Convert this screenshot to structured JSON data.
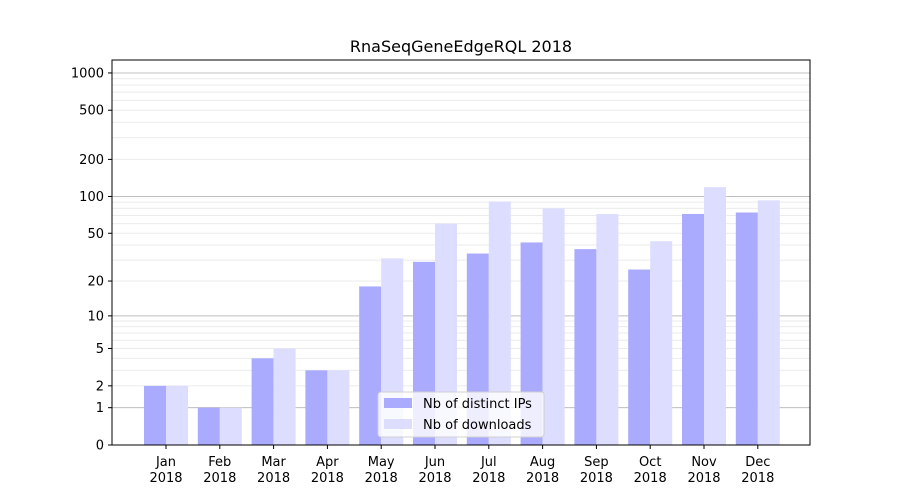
{
  "chart_data": {
    "type": "bar",
    "title": "RnaSeqGeneEdgeRQL 2018",
    "xlabel": "",
    "ylabel": "",
    "yscale": "log(1+y)",
    "ylim": [
      0,
      1300
    ],
    "yticks": [
      0,
      1,
      2,
      5,
      10,
      20,
      50,
      100,
      200,
      500,
      1000
    ],
    "grid": true,
    "legend_position": "bottom-center",
    "categories": [
      "Jan\n2018",
      "Feb\n2018",
      "Mar\n2018",
      "Apr\n2018",
      "May\n2018",
      "Jun\n2018",
      "Jul\n2018",
      "Aug\n2018",
      "Sep\n2018",
      "Oct\n2018",
      "Nov\n2018",
      "Dec\n2018"
    ],
    "series": [
      {
        "name": "Nb of distinct IPs",
        "color": "#aaaaff",
        "values": [
          2,
          1,
          4,
          3,
          18,
          29,
          34,
          42,
          37,
          25,
          72,
          74
        ]
      },
      {
        "name": "Nb of downloads",
        "color": "#ddddff",
        "values": [
          2,
          1,
          5,
          3,
          31,
          60,
          91,
          80,
          72,
          43,
          119,
          93
        ]
      }
    ]
  }
}
